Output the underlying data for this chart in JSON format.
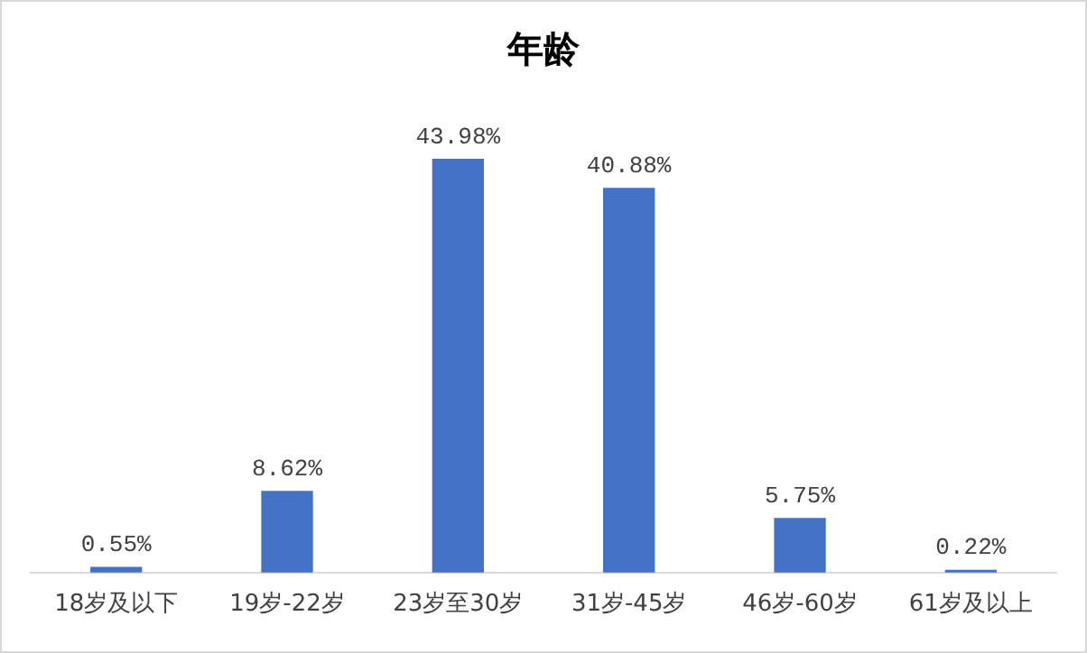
{
  "chart_data": {
    "type": "bar",
    "title": "年龄",
    "categories": [
      "18岁及以下",
      "19岁-22岁",
      "23岁至30岁",
      "31岁-45岁",
      "46岁-60岁",
      "61岁及以上"
    ],
    "values": [
      0.55,
      8.62,
      43.98,
      40.88,
      5.75,
      0.22
    ],
    "value_labels": [
      "0.55%",
      "8.62%",
      "43.98%",
      "40.88%",
      "5.75%",
      "0.22%"
    ],
    "color": "#4472c4"
  }
}
